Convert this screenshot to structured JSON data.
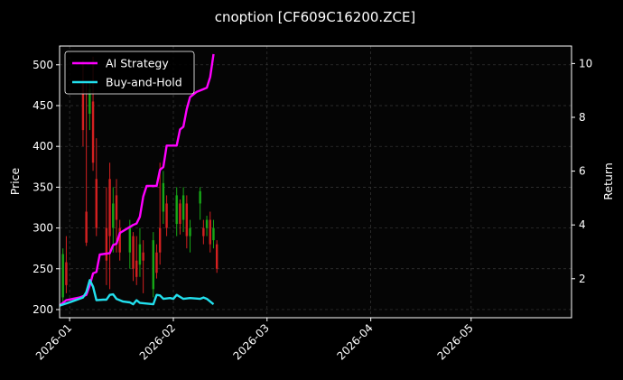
{
  "chart_data": {
    "type": "line",
    "title": "cnoption [CF609C16200.ZCE]",
    "xlabel": "",
    "ylabel_left": "Price",
    "ylabel_right": "Return",
    "left_axis": {
      "ylim": [
        190,
        523
      ],
      "ticks": [
        200,
        250,
        300,
        350,
        400,
        450,
        500
      ]
    },
    "right_axis": {
      "ylim": [
        0.55,
        10.65
      ],
      "ticks": [
        2,
        4,
        6,
        8,
        10
      ]
    },
    "x_axis": {
      "xlim": [
        "2025-12-29",
        "2026-05-31"
      ],
      "ticks": [
        {
          "date": "2026-01-01",
          "label": "2026-01"
        },
        {
          "date": "2026-02-01",
          "label": "2026-02"
        },
        {
          "date": "2026-03-01",
          "label": "2026-03"
        },
        {
          "date": "2026-04-01",
          "label": "2026-04"
        },
        {
          "date": "2026-05-01",
          "label": "2026-05"
        }
      ]
    },
    "grid": true,
    "legend": {
      "placement": "top-left",
      "entries": [
        "AI Strategy",
        "Buy-and-Hold"
      ]
    },
    "colors": {
      "background": "#000000",
      "plot_background": "#050505",
      "ai_strategy": "#ff00ff",
      "buy_hold": "#22e0ee",
      "candle_up": "#17a817",
      "candle_down": "#d42020",
      "grid": "#3a3a3a"
    },
    "series": [
      {
        "name": "AI Strategy",
        "axis": "right",
        "points": [
          [
            "2025-12-29",
            1.0
          ],
          [
            "2025-12-31",
            1.2
          ],
          [
            "2026-01-02",
            1.25
          ],
          [
            "2026-01-04",
            1.3
          ],
          [
            "2026-01-06",
            1.4
          ],
          [
            "2026-01-07",
            1.75
          ],
          [
            "2026-01-08",
            2.2
          ],
          [
            "2026-01-09",
            2.25
          ],
          [
            "2026-01-10",
            2.9
          ],
          [
            "2026-01-13",
            2.95
          ],
          [
            "2026-01-14",
            3.25
          ],
          [
            "2026-01-15",
            3.3
          ],
          [
            "2026-01-16",
            3.7
          ],
          [
            "2026-01-18",
            3.85
          ],
          [
            "2026-01-20",
            4.0
          ],
          [
            "2026-01-21",
            4.05
          ],
          [
            "2026-01-22",
            4.3
          ],
          [
            "2026-01-23",
            5.05
          ],
          [
            "2026-01-24",
            5.45
          ],
          [
            "2026-01-26",
            5.45
          ],
          [
            "2026-01-27",
            5.45
          ],
          [
            "2026-01-28",
            6.05
          ],
          [
            "2026-01-29",
            6.15
          ],
          [
            "2026-01-30",
            6.95
          ],
          [
            "2026-02-02",
            6.95
          ],
          [
            "2026-02-03",
            7.55
          ],
          [
            "2026-02-04",
            7.65
          ],
          [
            "2026-02-05",
            8.3
          ],
          [
            "2026-02-06",
            8.75
          ],
          [
            "2026-02-08",
            8.95
          ],
          [
            "2026-02-10",
            9.05
          ],
          [
            "2026-02-11",
            9.1
          ],
          [
            "2026-02-12",
            9.5
          ],
          [
            "2026-02-13",
            10.35
          ]
        ]
      },
      {
        "name": "Buy-and-Hold",
        "axis": "right",
        "points": [
          [
            "2025-12-29",
            1.0
          ],
          [
            "2026-01-01",
            1.12
          ],
          [
            "2026-01-05",
            1.3
          ],
          [
            "2026-01-06",
            1.5
          ],
          [
            "2026-01-07",
            1.95
          ],
          [
            "2026-01-08",
            1.7
          ],
          [
            "2026-01-09",
            1.2
          ],
          [
            "2026-01-11",
            1.22
          ],
          [
            "2026-01-12",
            1.22
          ],
          [
            "2026-01-13",
            1.4
          ],
          [
            "2026-01-14",
            1.42
          ],
          [
            "2026-01-15",
            1.25
          ],
          [
            "2026-01-17",
            1.15
          ],
          [
            "2026-01-19",
            1.12
          ],
          [
            "2026-01-20",
            1.05
          ],
          [
            "2026-01-21",
            1.2
          ],
          [
            "2026-01-22",
            1.1
          ],
          [
            "2026-01-26",
            1.05
          ],
          [
            "2026-01-27",
            1.4
          ],
          [
            "2026-01-28",
            1.38
          ],
          [
            "2026-01-29",
            1.25
          ],
          [
            "2026-01-31",
            1.28
          ],
          [
            "2026-02-01",
            1.25
          ],
          [
            "2026-02-02",
            1.4
          ],
          [
            "2026-02-04",
            1.25
          ],
          [
            "2026-02-06",
            1.28
          ],
          [
            "2026-02-09",
            1.25
          ],
          [
            "2026-02-10",
            1.3
          ],
          [
            "2026-02-11",
            1.25
          ],
          [
            "2026-02-13",
            1.05
          ]
        ]
      }
    ],
    "candles": [
      {
        "date": "2025-12-30",
        "open": 215,
        "close": 268,
        "low": 205,
        "high": 275
      },
      {
        "date": "2025-12-31",
        "open": 258,
        "close": 230,
        "low": 220,
        "high": 290
      },
      {
        "date": "2026-01-05",
        "open": 480,
        "close": 420,
        "low": 400,
        "high": 505
      },
      {
        "date": "2026-01-06",
        "open": 320,
        "close": 282,
        "low": 278,
        "high": 480
      },
      {
        "date": "2026-01-07",
        "open": 440,
        "close": 470,
        "low": 420,
        "high": 480
      },
      {
        "date": "2026-01-08",
        "open": 455,
        "close": 380,
        "low": 370,
        "high": 510
      },
      {
        "date": "2026-01-09",
        "open": 360,
        "close": 300,
        "low": 290,
        "high": 410
      },
      {
        "date": "2026-01-12",
        "open": 300,
        "close": 260,
        "low": 230,
        "high": 350
      },
      {
        "date": "2026-01-13",
        "open": 360,
        "close": 290,
        "low": 225,
        "high": 380
      },
      {
        "date": "2026-01-14",
        "open": 300,
        "close": 330,
        "low": 270,
        "high": 350
      },
      {
        "date": "2026-01-15",
        "open": 340,
        "close": 310,
        "low": 270,
        "high": 360
      },
      {
        "date": "2026-01-16",
        "open": 300,
        "close": 270,
        "low": 260,
        "high": 310
      },
      {
        "date": "2026-01-19",
        "open": 270,
        "close": 300,
        "low": 250,
        "high": 310
      },
      {
        "date": "2026-01-20",
        "open": 290,
        "close": 250,
        "low": 235,
        "high": 295
      },
      {
        "date": "2026-01-21",
        "open": 260,
        "close": 240,
        "low": 230,
        "high": 290
      },
      {
        "date": "2026-01-22",
        "open": 255,
        "close": 280,
        "low": 240,
        "high": 300
      },
      {
        "date": "2026-01-23",
        "open": 270,
        "close": 260,
        "low": 220,
        "high": 285
      },
      {
        "date": "2026-01-26",
        "open": 225,
        "close": 285,
        "low": 215,
        "high": 295
      },
      {
        "date": "2026-01-27",
        "open": 270,
        "close": 245,
        "low": 238,
        "high": 280
      },
      {
        "date": "2026-01-28",
        "open": 300,
        "close": 270,
        "low": 255,
        "high": 380
      },
      {
        "date": "2026-01-29",
        "open": 320,
        "close": 355,
        "low": 305,
        "high": 370
      },
      {
        "date": "2026-01-30",
        "open": 330,
        "close": 300,
        "low": 290,
        "high": 340
      },
      {
        "date": "2026-02-02",
        "open": 305,
        "close": 340,
        "low": 290,
        "high": 350
      },
      {
        "date": "2026-02-03",
        "open": 330,
        "close": 305,
        "low": 292,
        "high": 335
      },
      {
        "date": "2026-02-04",
        "open": 310,
        "close": 340,
        "low": 295,
        "high": 350
      },
      {
        "date": "2026-02-05",
        "open": 330,
        "close": 290,
        "low": 275,
        "high": 340
      },
      {
        "date": "2026-02-06",
        "open": 290,
        "close": 300,
        "low": 270,
        "high": 310
      },
      {
        "date": "2026-02-09",
        "open": 330,
        "close": 345,
        "low": 310,
        "high": 350
      },
      {
        "date": "2026-02-10",
        "open": 300,
        "close": 290,
        "low": 280,
        "high": 310
      },
      {
        "date": "2026-02-11",
        "open": 300,
        "close": 310,
        "low": 290,
        "high": 315
      },
      {
        "date": "2026-02-12",
        "open": 310,
        "close": 280,
        "low": 270,
        "high": 320
      },
      {
        "date": "2026-02-13",
        "open": 285,
        "close": 300,
        "low": 275,
        "high": 310
      },
      {
        "date": "2026-02-14",
        "open": 280,
        "close": 250,
        "low": 245,
        "high": 285
      }
    ]
  }
}
